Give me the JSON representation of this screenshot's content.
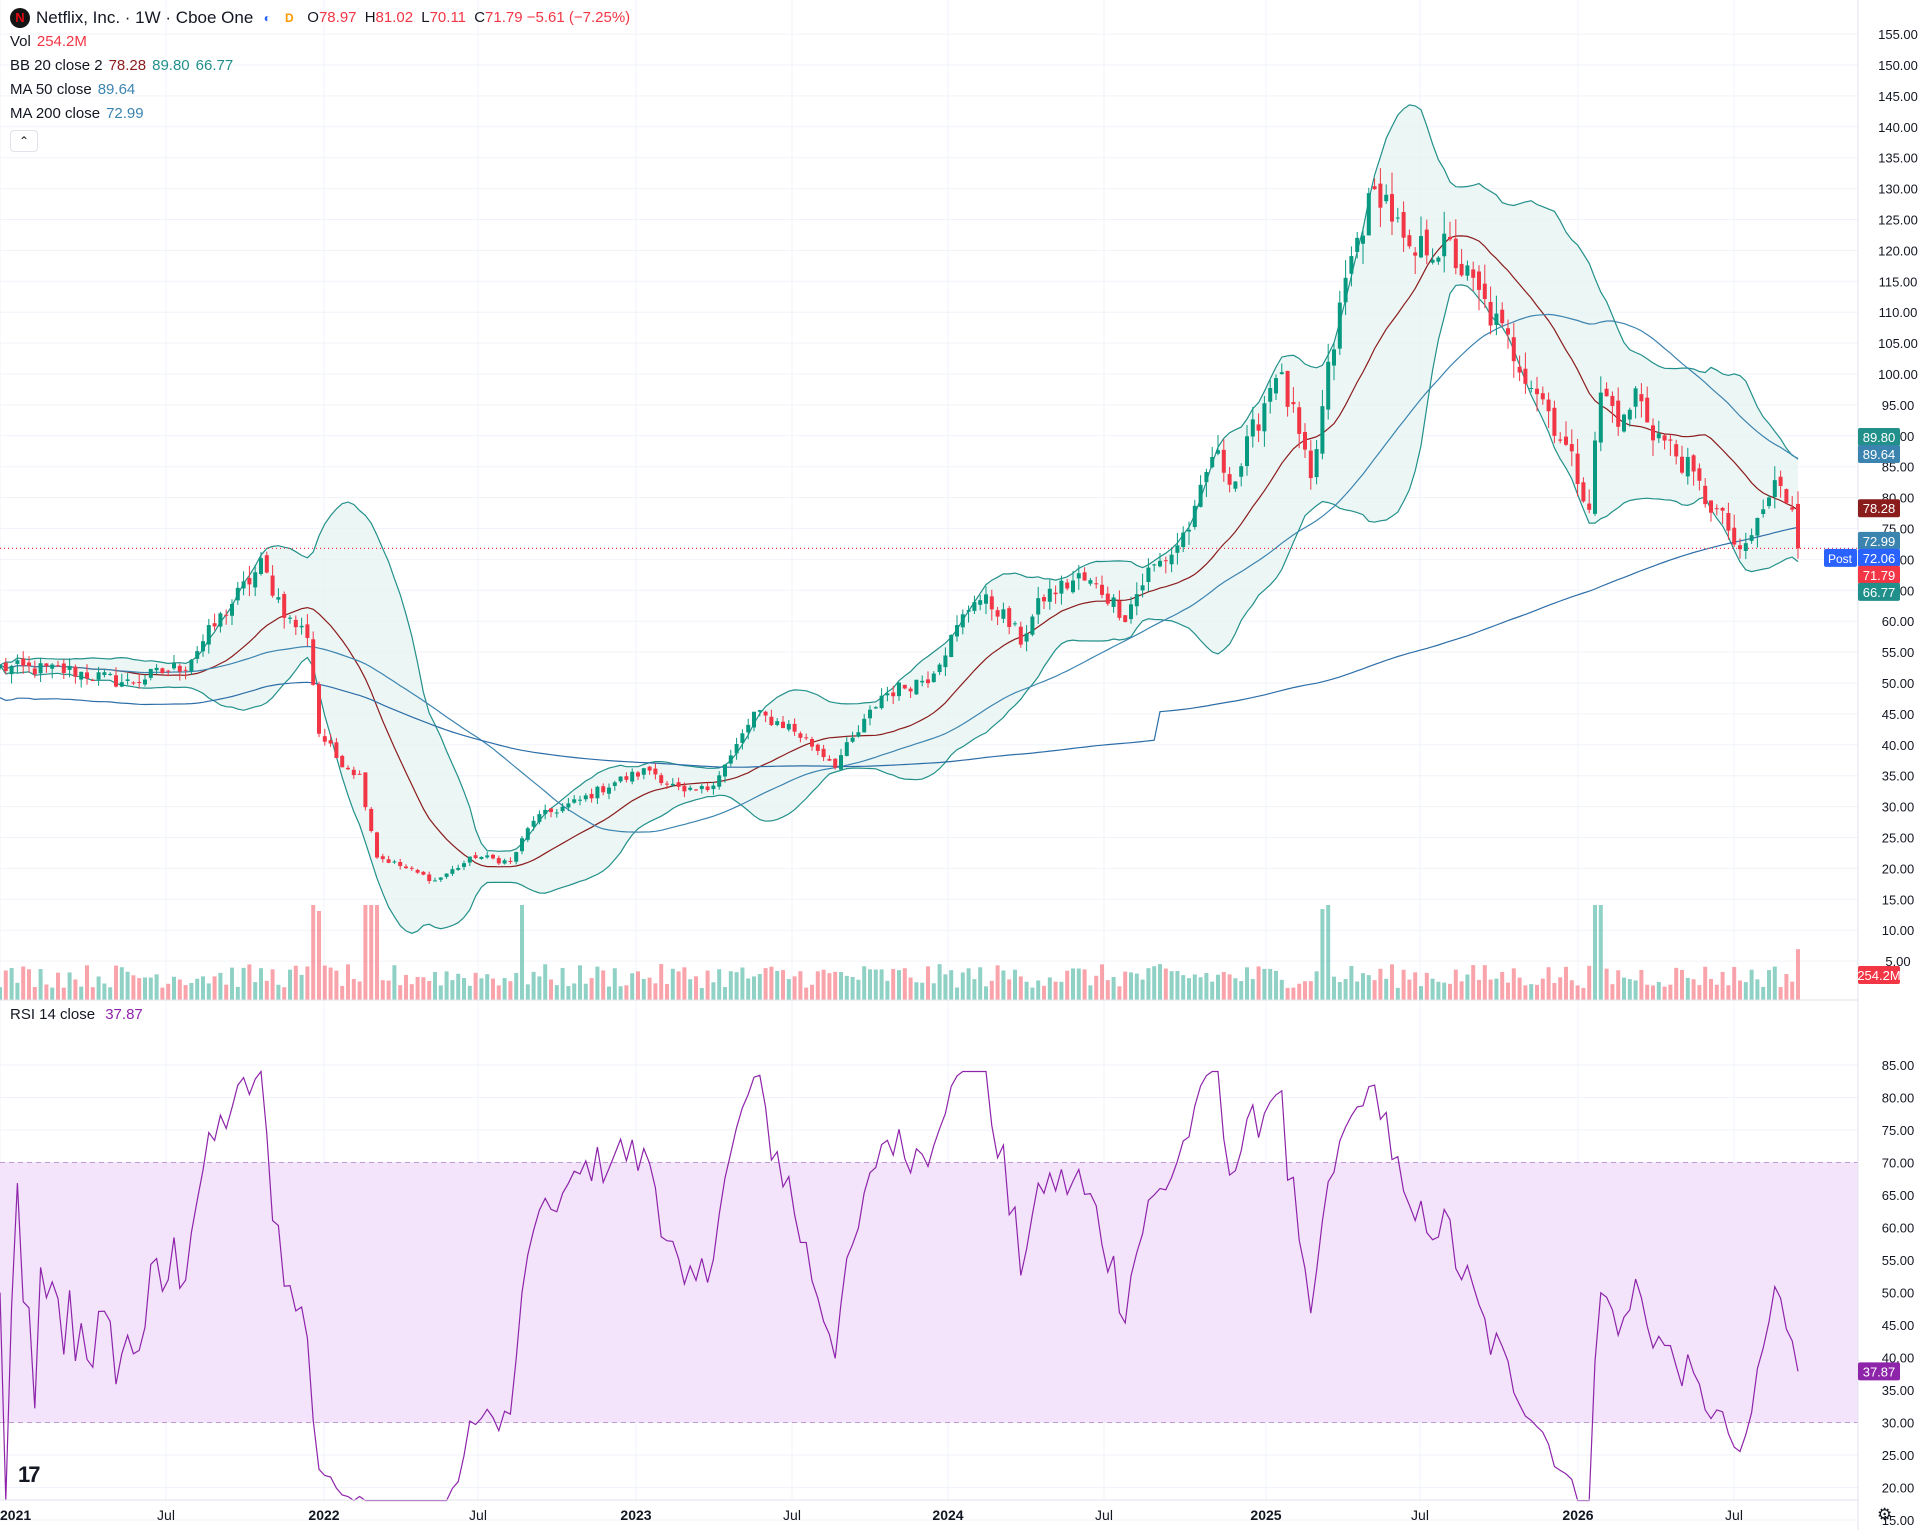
{
  "header": {
    "symbol_title": "Netflix, Inc. · 1W · Cboe One",
    "logo_letter": "N",
    "open_label": "O",
    "open": "78.97",
    "high_label": "H",
    "high": "81.02",
    "low_label": "L",
    "low": "70.11",
    "close_label": "C",
    "close": "71.79",
    "change": "−5.61 (−7.25%)"
  },
  "legend": {
    "vol_label": "Vol",
    "vol_value": "254.2M",
    "bb_label": "BB 20 close 2",
    "bb_mid": "78.28",
    "bb_upper": "89.80",
    "bb_lower": "66.77",
    "ma50_label": "MA 50 close",
    "ma50_value": "89.64",
    "ma200_label": "MA 200 close",
    "ma200_value": "72.99",
    "collapse_icon": "chevron-up-icon"
  },
  "rsi_legend": {
    "label": "RSI 14 close",
    "value": "37.87"
  },
  "price_badges": [
    {
      "text": "89.80",
      "value": 89.8,
      "color": "#22908a"
    },
    {
      "text": "89.64",
      "value": 89.64,
      "color": "#3c84b0"
    },
    {
      "text": "78.28",
      "value": 78.28,
      "color": "#8b1c1c"
    },
    {
      "text": "72.99",
      "value": 72.99,
      "color": "#3c84b0"
    },
    {
      "text": "72.06",
      "value": 72.06,
      "color": "#2962ff"
    },
    {
      "text": "71.79",
      "value": 71.79,
      "color": "#f23645"
    },
    {
      "text": "66.77",
      "value": 66.77,
      "color": "#22908a"
    }
  ],
  "post_label": "Post",
  "volume_badge": "254.2M",
  "rsi_badge": "37.87",
  "colors": {
    "up": "#089981",
    "down": "#f23645",
    "bb_fill": "#e6f4f2",
    "rsi_fill": "#f3e3fb",
    "rsi_line": "#8e24aa"
  },
  "chart_data": {
    "type": "candlestick",
    "timeframe": "1W",
    "x_ticks": [
      "2021",
      "Jul",
      "2022",
      "Jul",
      "2023",
      "Jul",
      "2024",
      "Jul",
      "2025",
      "Jul",
      "2026",
      "Jul"
    ],
    "y_ticks": [
      "155.00",
      "150.00",
      "145.00",
      "140.00",
      "135.00",
      "130.00",
      "125.00",
      "120.00",
      "115.00",
      "110.00",
      "105.00",
      "100.00",
      "95.00",
      "90.00",
      "85.00",
      "80.00",
      "75.00",
      "70.00",
      "65.00",
      "60.00",
      "55.00",
      "50.00",
      "45.00",
      "40.00",
      "35.00",
      "30.00",
      "25.00",
      "20.00",
      "15.00",
      "10.00",
      "5.00"
    ],
    "ylim": [
      0,
      155
    ],
    "close_anchors": [
      [
        0,
        52.5
      ],
      [
        12,
        52
      ],
      [
        22,
        50
      ],
      [
        32,
        53
      ],
      [
        40,
        63
      ],
      [
        45,
        69
      ],
      [
        50,
        60
      ],
      [
        53,
        58
      ],
      [
        55,
        42
      ],
      [
        58,
        38
      ],
      [
        62,
        35
      ],
      [
        65,
        22
      ],
      [
        70,
        20
      ],
      [
        75,
        18
      ],
      [
        82,
        22
      ],
      [
        88,
        21
      ],
      [
        92,
        28
      ],
      [
        100,
        31
      ],
      [
        106,
        34
      ],
      [
        112,
        36
      ],
      [
        118,
        32
      ],
      [
        122,
        33
      ],
      [
        126,
        38
      ],
      [
        130,
        45
      ],
      [
        136,
        43
      ],
      [
        140,
        40
      ],
      [
        144,
        37
      ],
      [
        148,
        42
      ],
      [
        152,
        48
      ],
      [
        160,
        51
      ],
      [
        164,
        57
      ],
      [
        168,
        64
      ],
      [
        172,
        62
      ],
      [
        176,
        57
      ],
      [
        180,
        64
      ],
      [
        186,
        67
      ],
      [
        190,
        65
      ],
      [
        194,
        61
      ],
      [
        198,
        68
      ],
      [
        202,
        71
      ],
      [
        206,
        77
      ],
      [
        209,
        87
      ],
      [
        213,
        83
      ],
      [
        217,
        93
      ],
      [
        220,
        101
      ],
      [
        223,
        93
      ],
      [
        226,
        82
      ],
      [
        229,
        100
      ],
      [
        232,
        115
      ],
      [
        235,
        125
      ],
      [
        238,
        130
      ],
      [
        240,
        126
      ],
      [
        243,
        118
      ],
      [
        246,
        121
      ],
      [
        250,
        120
      ],
      [
        254,
        114
      ],
      [
        258,
        108
      ],
      [
        262,
        102
      ],
      [
        266,
        96
      ],
      [
        270,
        88
      ],
      [
        274,
        79
      ],
      [
        276,
        97
      ],
      [
        280,
        92
      ],
      [
        282,
        97
      ],
      [
        285,
        91
      ],
      [
        290,
        86
      ],
      [
        294,
        80
      ],
      [
        298,
        75
      ],
      [
        300,
        70
      ],
      [
        303,
        76
      ],
      [
        306,
        82
      ],
      [
        309,
        79
      ],
      [
        310,
        71.79
      ]
    ],
    "ohlc_last": {
      "open": 78.97,
      "high": 81.02,
      "low": 70.11,
      "close": 71.79
    },
    "volume_last": 254.2,
    "bb": {
      "length": 20,
      "source": "close",
      "mult": 2,
      "basis": 78.28,
      "upper": 89.8,
      "lower": 66.77
    },
    "ma50": 89.64,
    "ma200": 72.99,
    "post_market": 72.06,
    "rsi": {
      "length": 14,
      "source": "close",
      "value": 37.87,
      "upper_band": 70,
      "lower_band": 30,
      "y_ticks": [
        "85.00",
        "80.00",
        "75.00",
        "70.00",
        "65.00",
        "60.00",
        "55.00",
        "50.00",
        "45.00",
        "40.00",
        "35.00",
        "30.00",
        "25.00",
        "20.00",
        "15.00"
      ],
      "ylim": [
        12.5,
        87.5
      ]
    }
  }
}
